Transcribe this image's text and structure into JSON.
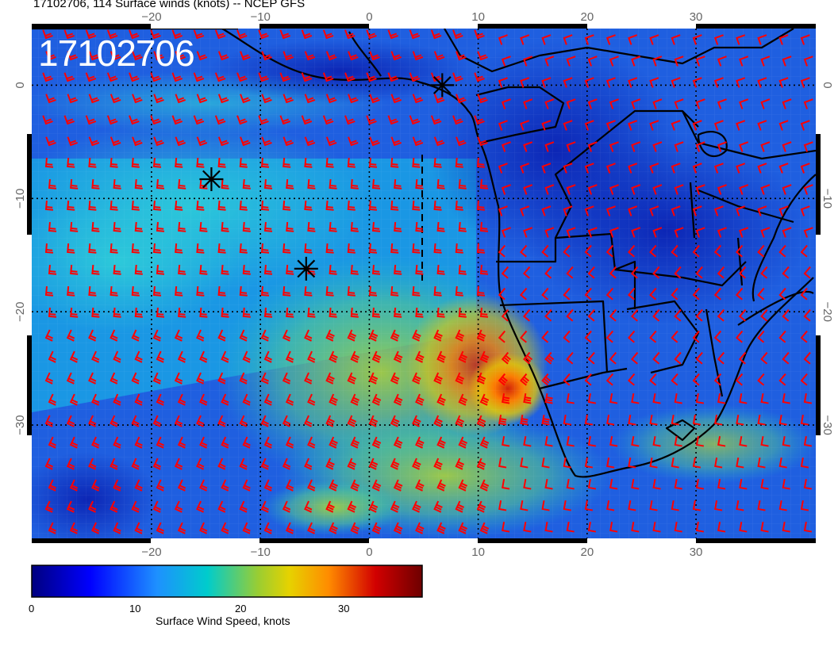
{
  "header": {
    "title": "17102706, 114 Surface winds (knots) -- NCEP GFS",
    "stamp": "17102706"
  },
  "map": {
    "lon_range": [
      -31,
      41
    ],
    "lat_range": [
      -40,
      5
    ],
    "lon_ticks": [
      -20,
      -10,
      0,
      10,
      20,
      30
    ],
    "lat_ticks": [
      0,
      -10,
      -20,
      -30
    ],
    "top_lon_labels": [
      "−20",
      "−10",
      "0",
      "10",
      "20",
      "30"
    ],
    "bottom_lon_labels": [
      "−20",
      "−10",
      "0",
      "10",
      "20",
      "30"
    ],
    "left_lat_labels": [
      "0",
      "−10",
      "−20",
      "−30"
    ],
    "right_lat_labels": [
      "0",
      "−10",
      "−20",
      "−30"
    ],
    "storm_markers": [
      {
        "lon": 6.7,
        "lat": 0.0
      },
      {
        "lon": -14.5,
        "lat": -8.3
      },
      {
        "lon": -5.8,
        "lat": -16.2
      }
    ],
    "colors": {
      "land_outline": "#000000",
      "barb": "#ff0000"
    }
  },
  "colorbar": {
    "min": 0,
    "max": 37,
    "tick_labels": [
      "0",
      "10",
      "20",
      "30"
    ],
    "tick_values": [
      0,
      10,
      20,
      30
    ],
    "title": "Surface Wind Speed, knots"
  }
}
